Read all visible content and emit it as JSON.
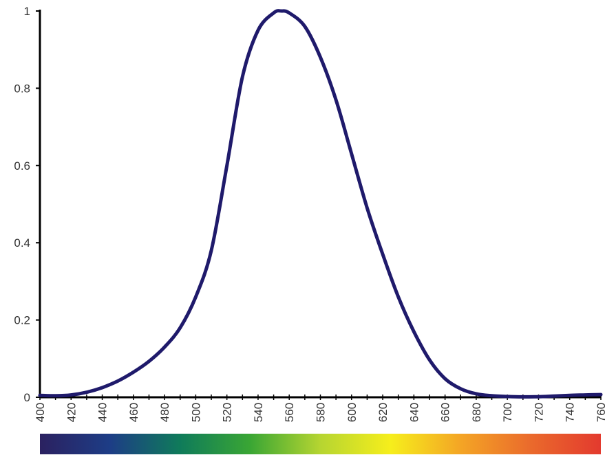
{
  "chart_data": {
    "type": "line",
    "title": "",
    "xlabel": "",
    "ylabel": "",
    "xlim": [
      400,
      760
    ],
    "ylim": [
      0,
      1
    ],
    "grid": false,
    "x_ticks": [
      "400",
      "420",
      "440",
      "460",
      "480",
      "500",
      "520",
      "540",
      "560",
      "580",
      "600",
      "620",
      "640",
      "660",
      "680",
      "700",
      "720",
      "740",
      "760"
    ],
    "y_ticks": [
      "0",
      "0.2",
      "0.4",
      "0.6",
      "0.8",
      "1"
    ],
    "series": [
      {
        "color": "#1f1a6b",
        "x": [
          400,
          410,
          420,
          430,
          440,
          450,
          460,
          470,
          480,
          490,
          500,
          510,
          520,
          530,
          540,
          550,
          555,
          560,
          570,
          580,
          590,
          600,
          610,
          620,
          630,
          640,
          650,
          660,
          670,
          680,
          690,
          700,
          710,
          720,
          730,
          740,
          750,
          760
        ],
        "y": [
          0.005,
          0.004,
          0.006,
          0.013,
          0.025,
          0.042,
          0.065,
          0.093,
          0.13,
          0.18,
          0.26,
          0.38,
          0.6,
          0.83,
          0.95,
          0.995,
          1.0,
          0.995,
          0.96,
          0.88,
          0.77,
          0.63,
          0.49,
          0.37,
          0.26,
          0.17,
          0.097,
          0.048,
          0.022,
          0.009,
          0.004,
          0.002,
          0.001,
          0.0015,
          0.003,
          0.005,
          0.006,
          0.007
        ]
      }
    ],
    "spectrum_bar": {
      "stops": [
        "#2b2160",
        "#1d3d86",
        "#0f7b5a",
        "#3aa634",
        "#b6d531",
        "#f6ee1c",
        "#f4a525",
        "#ea6a2c",
        "#e33a2e"
      ]
    }
  }
}
